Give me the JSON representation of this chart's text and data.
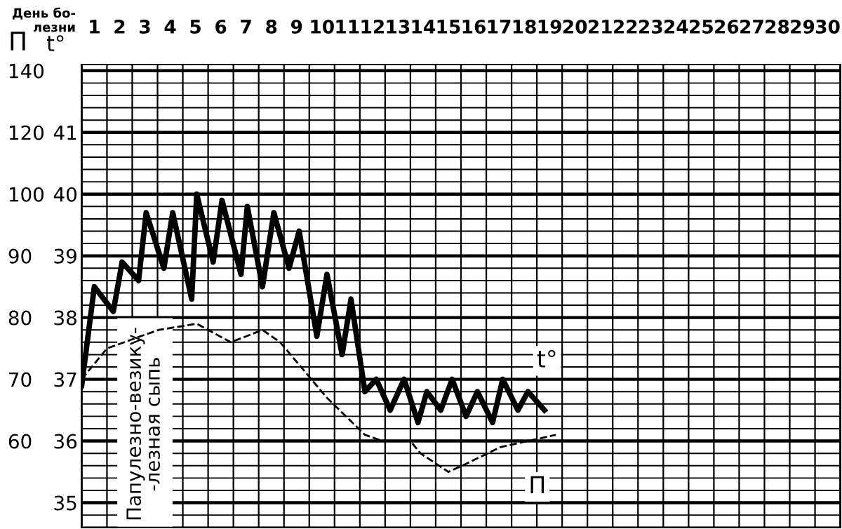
{
  "chart_data": {
    "type": "line",
    "xlabel": "День бо-\nлезни",
    "ylabel": "t°",
    "y2label": "П",
    "xlim": [
      0.5,
      30.5
    ],
    "xticks": [
      1,
      2,
      3,
      4,
      5,
      6,
      7,
      8,
      9,
      10,
      11,
      12,
      13,
      14,
      15,
      16,
      17,
      18,
      19,
      20,
      21,
      22,
      23,
      24,
      25,
      26,
      27,
      28,
      29,
      30
    ],
    "ylim": [
      34.6,
      42.1
    ],
    "yticks": [
      35,
      36,
      37,
      38,
      39,
      40,
      41
    ],
    "y2lim": [
      46,
      121
    ],
    "y2ticks": [
      60,
      70,
      80,
      90,
      100
    ],
    "y3lim": [
      -8,
      142
    ],
    "y3ticks": [
      120,
      140
    ],
    "grid": true,
    "legend": false,
    "marker": "none",
    "series": [
      {
        "name": "t°",
        "color": "#000000",
        "line_style": "solid",
        "x": [
          0.5,
          1.0,
          1.75,
          2.1,
          2.75,
          3.05,
          3.75,
          4.1,
          4.85,
          5.05,
          5.7,
          6.05,
          6.8,
          7.05,
          7.65,
          8.1,
          8.7,
          9.1,
          9.8,
          10.2,
          10.8,
          11.15,
          11.7,
          12.15,
          12.7,
          13.25,
          13.8,
          14.15,
          14.7,
          15.15,
          15.7,
          16.15,
          16.75,
          17.15,
          17.75,
          18.15,
          18.8
        ],
        "values": [
          36.9,
          38.5,
          38.1,
          38.9,
          38.6,
          39.7,
          38.8,
          39.7,
          38.3,
          40.0,
          38.9,
          39.9,
          38.7,
          39.8,
          38.5,
          39.7,
          38.8,
          39.4,
          37.7,
          38.7,
          37.4,
          38.3,
          36.8,
          37.0,
          36.5,
          37.0,
          36.3,
          36.8,
          36.5,
          37.0,
          36.4,
          36.8,
          36.3,
          37.0,
          36.5,
          36.8,
          36.5
        ]
      },
      {
        "name": "П",
        "color": "#000000",
        "line_style": "dashed",
        "axis": "y2",
        "x": [
          0.5,
          1.5,
          2.85,
          3.55,
          5.05,
          6.4,
          7.65,
          8.35,
          10.2,
          11.7,
          12.4,
          13.5,
          13.9,
          15.0,
          15.55,
          17.05,
          19.25
        ],
        "values": [
          70,
          75,
          77,
          78,
          79,
          76,
          78,
          76,
          67,
          61,
          60,
          60,
          58,
          55,
          56,
          59,
          61
        ]
      }
    ],
    "annotations": [
      "Папулезно-везику-\n-лезная сыпь"
    ]
  }
}
